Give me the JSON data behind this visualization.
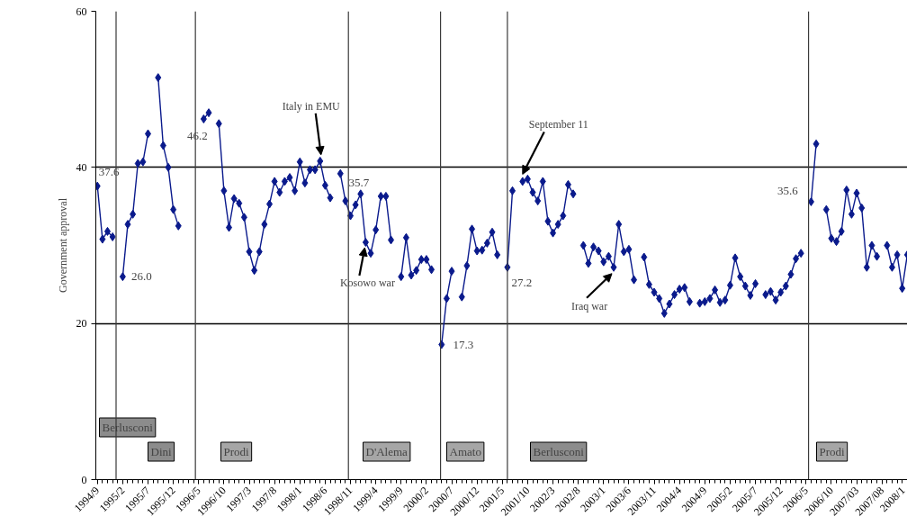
{
  "chart_data": {
    "type": "line",
    "ylabel": "Government approval",
    "marker": "diamond",
    "grid": "y",
    "x": [
      "1994-09",
      "1994-10",
      "1994-11",
      "1994-12",
      "1995-01",
      "1995-02",
      "1995-03",
      "1995-04",
      "1995-05",
      "1995-06",
      "1995-07",
      "1995-08",
      "1995-09",
      "1995-10",
      "1995-11",
      "1995-12",
      "1996-01",
      "1996-02",
      "1996-03",
      "1996-04",
      "1996-05",
      "1996-06",
      "1996-07",
      "1996-08",
      "1996-09",
      "1996-10",
      "1996-11",
      "1996-12",
      "1997-01",
      "1997-02",
      "1997-03",
      "1997-04",
      "1997-05",
      "1997-06",
      "1997-07",
      "1997-08",
      "1997-09",
      "1997-10",
      "1997-11",
      "1997-12",
      "1998-01",
      "1998-02",
      "1998-03",
      "1998-04",
      "1998-05",
      "1998-06",
      "1998-07",
      "1998-08",
      "1998-09",
      "1998-10",
      "1998-11",
      "1998-12",
      "1999-01",
      "1999-02",
      "1999-03",
      "1999-04",
      "1999-05",
      "1999-06",
      "1999-07",
      "1999-08",
      "1999-09",
      "1999-10",
      "1999-11",
      "1999-12",
      "2000-01",
      "2000-02",
      "2000-03",
      "2000-04",
      "2000-05",
      "2000-06",
      "2000-07",
      "2000-08",
      "2000-09",
      "2000-10",
      "2000-11",
      "2000-12",
      "2001-01",
      "2001-02",
      "2001-03",
      "2001-04",
      "2001-05",
      "2001-06",
      "2001-07",
      "2001-08",
      "2001-09",
      "2001-10",
      "2001-11",
      "2001-12",
      "2002-01",
      "2002-02",
      "2002-03",
      "2002-04",
      "2002-05",
      "2002-06",
      "2002-07",
      "2002-08",
      "2002-09",
      "2002-10",
      "2002-11",
      "2002-12",
      "2003-01",
      "2003-02",
      "2003-03",
      "2003-04",
      "2003-05",
      "2003-06",
      "2003-07",
      "2003-08",
      "2003-09",
      "2003-10",
      "2003-11",
      "2003-12",
      "2004-01",
      "2004-02",
      "2004-03",
      "2004-04",
      "2004-05",
      "2004-06",
      "2004-07",
      "2004-08",
      "2004-09",
      "2004-10",
      "2004-11",
      "2004-12",
      "2005-01",
      "2005-02",
      "2005-03",
      "2005-04",
      "2005-05",
      "2005-06",
      "2005-07",
      "2005-08",
      "2005-09",
      "2005-10",
      "2005-11",
      "2005-12",
      "2006-01",
      "2006-02",
      "2006-03",
      "2006-04",
      "2006-05",
      "2006-06",
      "2006-07",
      "2006-08",
      "2006-09",
      "2006-10",
      "2006-11",
      "2006-12",
      "2007-01",
      "2007-02",
      "2007-03",
      "2007-04",
      "2007-05",
      "2007-06",
      "2007-07",
      "2007-08",
      "2007-09",
      "2007-10",
      "2007-11",
      "2007-12",
      "2008-01"
    ],
    "series": [
      {
        "color": "#0a1a8c",
        "values": [
          37.6,
          30.8,
          31.8,
          31.1,
          null,
          26.0,
          32.7,
          34.0,
          40.5,
          40.7,
          44.3,
          null,
          51.5,
          42.8,
          40.0,
          34.6,
          32.5,
          null,
          null,
          null,
          null,
          46.2,
          47.0,
          null,
          45.6,
          37.0,
          32.3,
          36.0,
          35.4,
          33.6,
          29.2,
          26.8,
          29.2,
          32.7,
          35.3,
          38.2,
          36.8,
          38.2,
          38.7,
          37.0,
          40.7,
          38.0,
          39.7,
          39.7,
          40.8,
          37.7,
          36.1,
          null,
          39.2,
          35.7,
          33.8,
          35.2,
          36.6,
          30.4,
          29.0,
          32.0,
          36.3,
          36.3,
          30.7,
          null,
          26.0,
          31.0,
          26.2,
          26.8,
          28.2,
          28.2,
          26.9,
          null,
          17.3,
          23.2,
          26.7,
          null,
          23.4,
          27.4,
          32.1,
          29.3,
          29.4,
          30.3,
          31.7,
          28.8,
          null,
          27.2,
          37.0,
          null,
          38.2,
          38.5,
          36.8,
          35.7,
          38.2,
          33.1,
          31.6,
          32.7,
          33.8,
          37.8,
          36.6,
          null,
          30.0,
          27.7,
          29.8,
          29.3,
          27.9,
          28.6,
          27.2,
          32.7,
          29.2,
          29.5,
          25.6,
          null,
          28.5,
          25.0,
          24.0,
          23.2,
          21.3,
          22.5,
          23.7,
          24.4,
          24.6,
          22.8,
          null,
          22.6,
          22.8,
          23.2,
          24.3,
          22.7,
          23.0,
          24.9,
          28.4,
          26.0,
          24.8,
          23.6,
          25.1,
          null,
          23.7,
          24.1,
          23.0,
          24.0,
          24.8,
          26.3,
          28.3,
          29.0,
          null,
          35.6,
          43.0,
          null,
          34.6,
          30.9,
          30.5,
          31.8,
          37.1,
          34.0,
          36.7,
          34.8,
          27.2,
          30.0,
          28.6,
          null,
          30.0,
          27.2,
          28.8,
          24.5,
          28.8
        ],
        "value_labels": [
          "37.6",
          null,
          null,
          null,
          null,
          "26.0",
          null,
          null,
          null,
          null,
          null,
          null,
          null,
          null,
          null,
          null,
          null,
          null,
          null,
          null,
          null,
          "46.2",
          null,
          null,
          null,
          null,
          null,
          null,
          null,
          null,
          null,
          null,
          null,
          null,
          null,
          null,
          null,
          null,
          null,
          null,
          null,
          null,
          null,
          null,
          null,
          null,
          null,
          null,
          null,
          "35.7",
          null,
          null,
          null,
          null,
          null,
          null,
          null,
          null,
          null,
          null,
          null,
          null,
          null,
          null,
          null,
          null,
          null,
          null,
          "17.3",
          null,
          null,
          null,
          null,
          null,
          null,
          null,
          null,
          null,
          null,
          null,
          null,
          "27.2",
          null,
          null,
          null,
          null,
          null,
          null,
          null,
          null,
          null,
          null,
          null,
          null,
          null,
          null,
          null,
          null,
          null,
          null,
          null,
          null,
          null,
          null,
          null,
          null,
          null,
          null,
          null,
          null,
          null,
          null,
          null,
          null,
          null,
          null,
          null,
          null,
          null,
          null,
          null,
          null,
          null,
          null,
          null,
          null,
          null,
          null,
          null,
          null,
          null,
          null,
          null,
          null,
          null,
          null,
          null,
          null,
          null,
          null,
          null,
          "35.6",
          null,
          null,
          null,
          null,
          null,
          null,
          null,
          null,
          null,
          null,
          null,
          null,
          null,
          null,
          null,
          null,
          null,
          null,
          null
        ]
      }
    ],
    "xlim": [
      "1994-08-22",
      "2008-01-02"
    ],
    "xticks": [
      {
        "value": "1994-09",
        "label": "1994/9"
      },
      {
        "value": "1995-02",
        "label": "1995/2"
      },
      {
        "value": "1995-07",
        "label": "1995/7"
      },
      {
        "value": "1995-12",
        "label": "1995/12"
      },
      {
        "value": "1996-05",
        "label": "1996/5"
      },
      {
        "value": "1996-10",
        "label": "1996/10"
      },
      {
        "value": "1997-03",
        "label": "1997/3"
      },
      {
        "value": "1997-08",
        "label": "1997/8"
      },
      {
        "value": "1998-01",
        "label": "1998/1"
      },
      {
        "value": "1998-06",
        "label": "1998/6"
      },
      {
        "value": "1998-11",
        "label": "1998/11"
      },
      {
        "value": "1999-04",
        "label": "1999/4"
      },
      {
        "value": "1999-09",
        "label": "1999/9"
      },
      {
        "value": "2000-02",
        "label": "2000/2"
      },
      {
        "value": "2000-07",
        "label": "2000/7"
      },
      {
        "value": "2000-12",
        "label": "2000/12"
      },
      {
        "value": "2001-05",
        "label": "2001/5"
      },
      {
        "value": "2001-10",
        "label": "2001/10"
      },
      {
        "value": "2002-03",
        "label": "2002/3"
      },
      {
        "value": "2002-08",
        "label": "2002/8"
      },
      {
        "value": "2003-01",
        "label": "2003/1"
      },
      {
        "value": "2003-06",
        "label": "2003/6"
      },
      {
        "value": "2003-11",
        "label": "2003/11"
      },
      {
        "value": "2004-04",
        "label": "2004/4"
      },
      {
        "value": "2004-09",
        "label": "2004/9"
      },
      {
        "value": "2005-02",
        "label": "2005/2"
      },
      {
        "value": "2005-07",
        "label": "2005/7"
      },
      {
        "value": "2005-12",
        "label": "2005/12"
      },
      {
        "value": "2006-05",
        "label": "2006/5"
      },
      {
        "value": "2006-10",
        "label": "2006/10"
      },
      {
        "value": "2007-03",
        "label": "2007/03"
      },
      {
        "value": "2007-08",
        "label": "2007/08"
      },
      {
        "value": "2008-01",
        "label": "2008/1"
      }
    ],
    "ylim": [
      0,
      60
    ],
    "yticks": [
      0,
      20,
      40,
      60
    ],
    "ref_lines": [
      {
        "axis": "x",
        "value": "1994-12-22"
      },
      {
        "axis": "x",
        "value": "1996-04-12"
      },
      {
        "axis": "x",
        "value": "1998-10-19"
      },
      {
        "axis": "x",
        "value": "2000-04-25"
      },
      {
        "axis": "x",
        "value": "2001-06-01"
      },
      {
        "axis": "x",
        "value": "2006-05-16"
      }
    ],
    "annotations": [
      "Berlusconi",
      "Dini",
      "Prodi",
      "D'Alema",
      "Amato",
      "Berlusconi",
      "Prodi",
      {
        "text": "Italy in EMU",
        "x": "1998-05",
        "y": 40.8
      },
      {
        "text": "Kosowo war",
        "x": "1999-02",
        "y": 30.4
      },
      {
        "text": "September 11",
        "x": "2001-09",
        "y": 38.2
      },
      {
        "text": "Iraq war",
        "x": "2003-03",
        "y": 27.2
      }
    ]
  }
}
